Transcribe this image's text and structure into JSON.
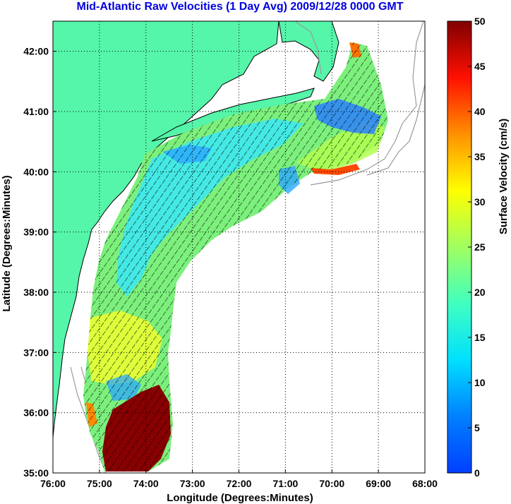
{
  "title": "Mid-Atlantic Raw Velocities (1 Day Avg) 2009/12/28 0000 GMT",
  "chart_data": {
    "type": "heatmap",
    "xlabel": "Longitude (Degrees:Minutes)",
    "ylabel": "Latitude (Degrees:Minutes)",
    "xlim": [
      -76,
      -68
    ],
    "ylim": [
      35,
      42.5
    ],
    "x_ticks": [
      "76:00",
      "75:00",
      "74:00",
      "73:00",
      "72:00",
      "71:00",
      "70:00",
      "69:00",
      "68:00"
    ],
    "y_ticks": [
      "35:00",
      "36:00",
      "37:00",
      "38:00",
      "39:00",
      "40:00",
      "41:00",
      "42:00"
    ],
    "grid": true,
    "colorbar": {
      "label": "Surface Velocity (cm/s)",
      "range": [
        0,
        50
      ],
      "ticks": [
        "0",
        "5",
        "10",
        "15",
        "20",
        "25",
        "30",
        "35",
        "40",
        "45",
        "50"
      ],
      "colormap": "jet"
    },
    "colors": {
      "land": "#55f5aa",
      "title": "#0000dd",
      "coastline_gray": "#999999"
    }
  }
}
